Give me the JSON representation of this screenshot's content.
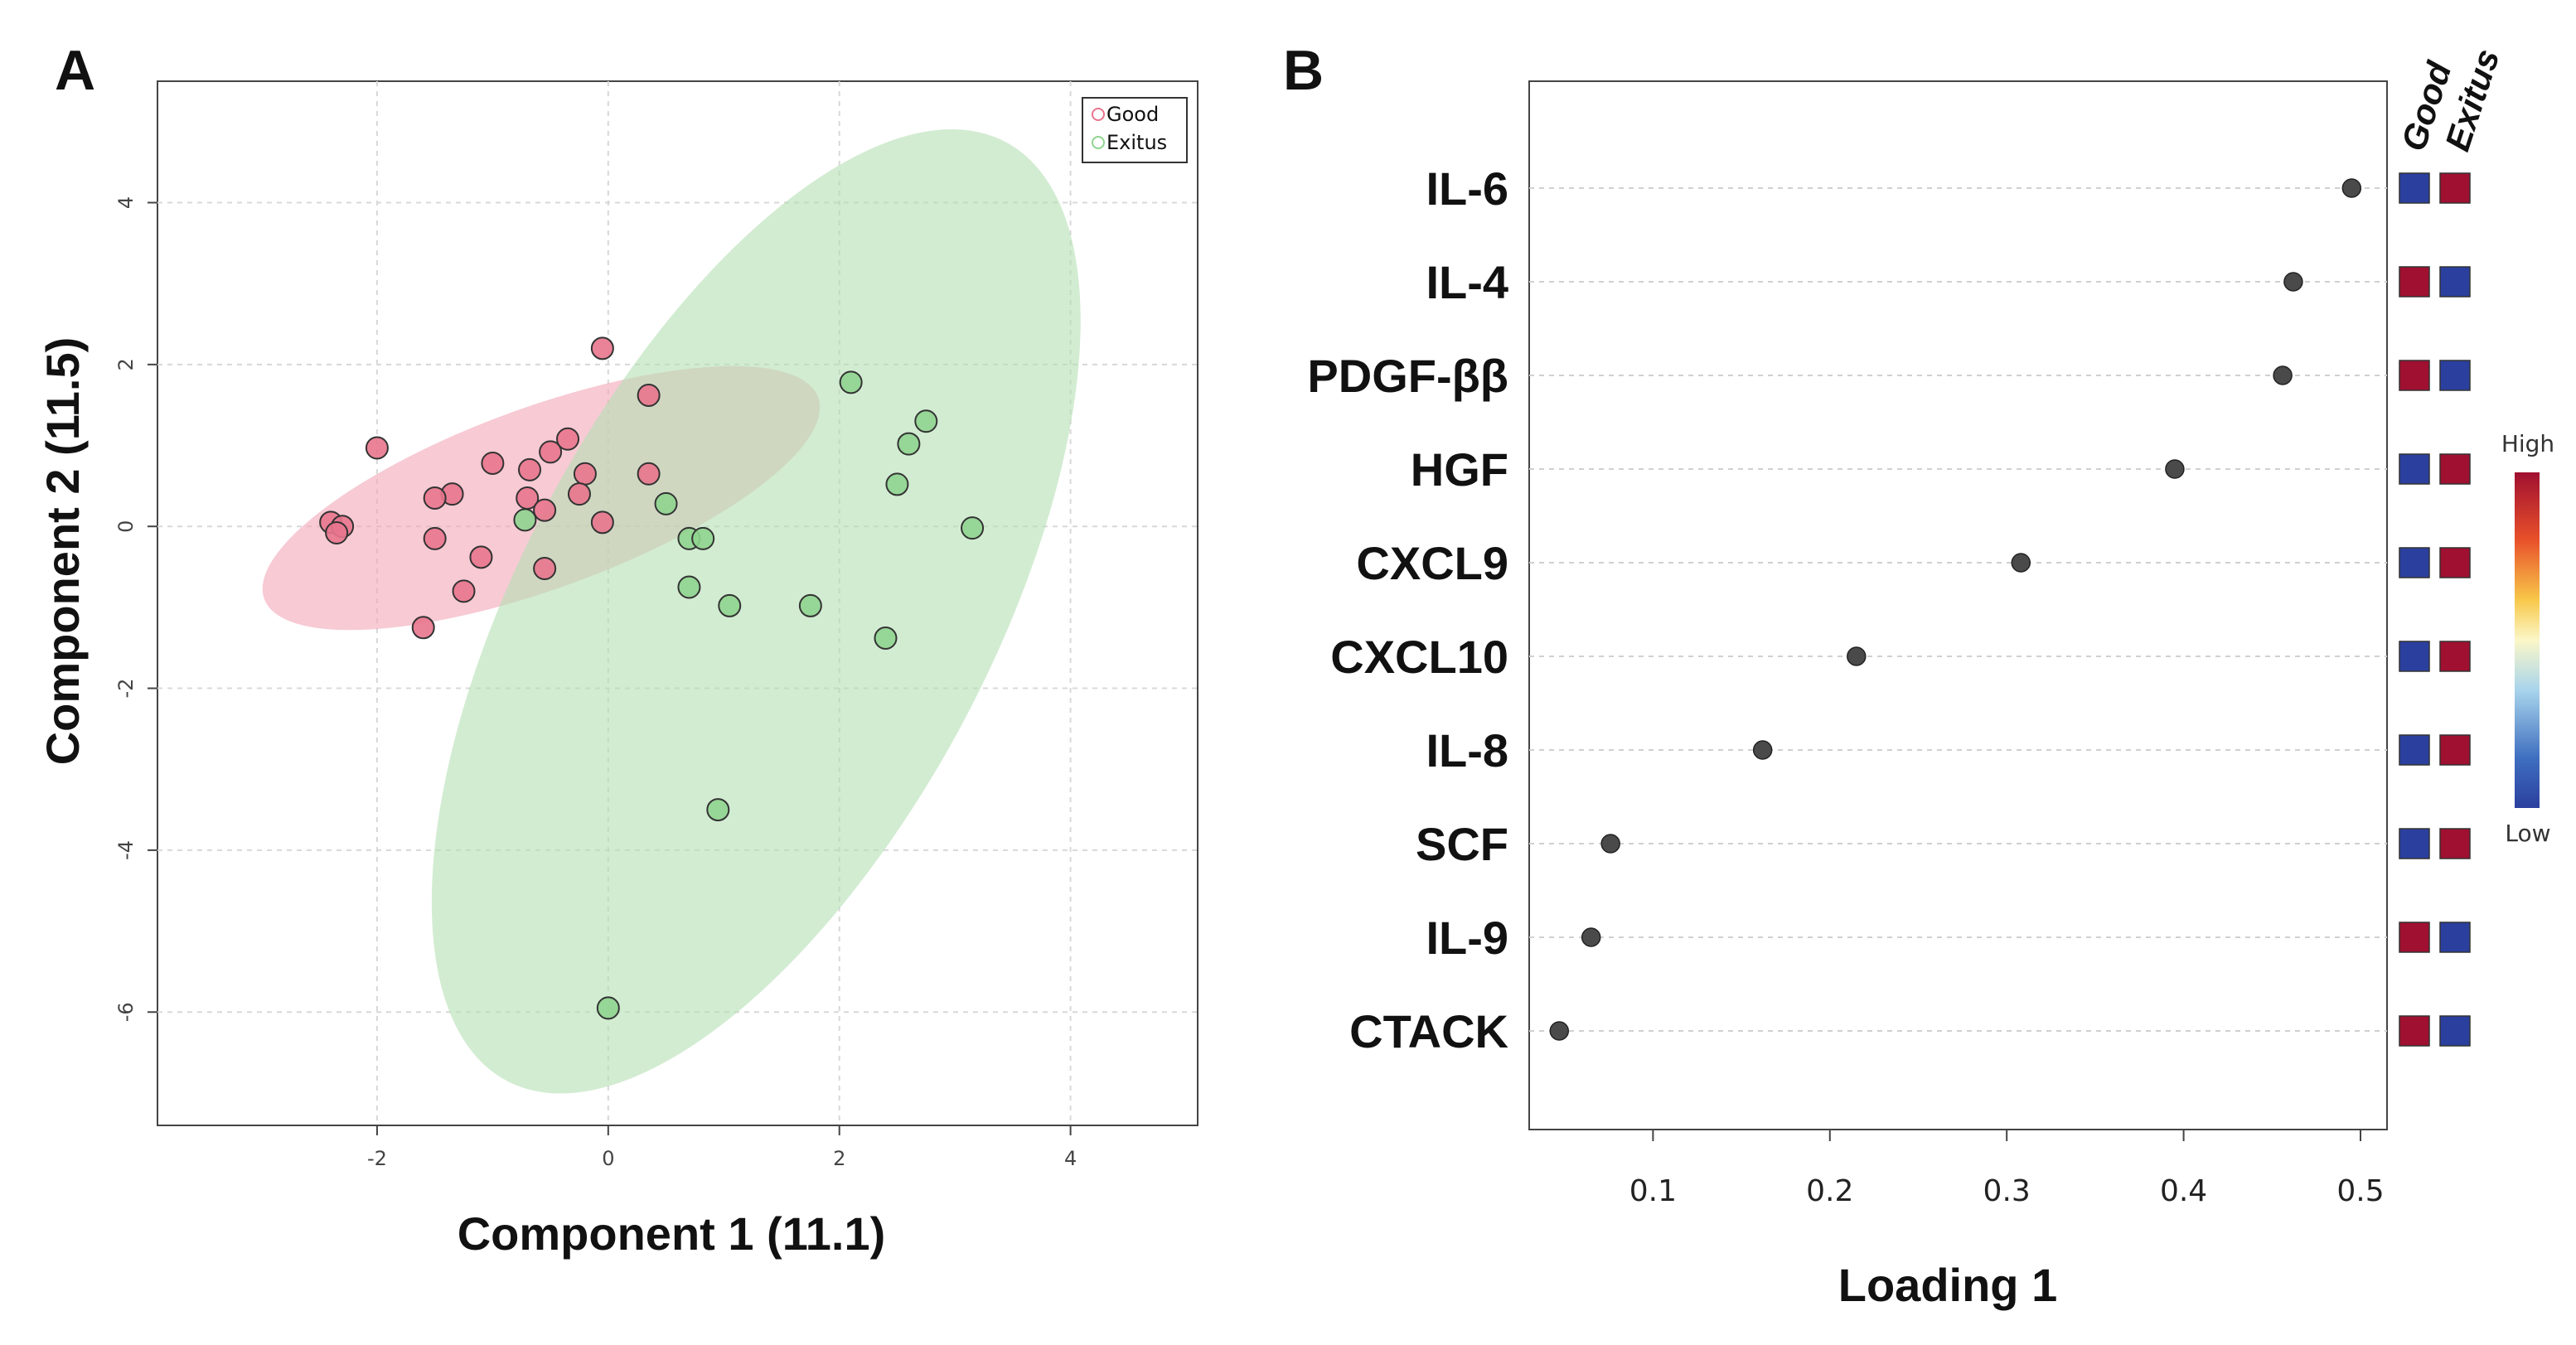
{
  "chart_data": [
    {
      "panel": "A",
      "type": "scatter",
      "xlabel": "Component 1 (11.1)",
      "ylabel": "Component 2 (11.5)",
      "xlim": [
        -3.9,
        5.1
      ],
      "ylim": [
        -7.4,
        5.5
      ],
      "xticks": [
        -2,
        0,
        2,
        4
      ],
      "yticks": [
        4,
        2,
        0,
        -2,
        -4,
        -6
      ],
      "grid": true,
      "legend_position": "top-right",
      "series": [
        {
          "name": "Good",
          "color": "#e8758d",
          "ellipse_color": "#f2a6b8",
          "points": [
            [
              -0.05,
              2.2
            ],
            [
              0.35,
              1.62
            ],
            [
              -2.0,
              0.97
            ],
            [
              -1.0,
              0.78
            ],
            [
              -0.35,
              1.08
            ],
            [
              -0.5,
              0.92
            ],
            [
              -1.35,
              0.4
            ],
            [
              -1.5,
              0.35
            ],
            [
              -0.68,
              0.7
            ],
            [
              -0.7,
              0.35
            ],
            [
              -0.2,
              0.65
            ],
            [
              0.35,
              0.65
            ],
            [
              -0.25,
              0.4
            ],
            [
              -0.55,
              0.2
            ],
            [
              -0.05,
              0.05
            ],
            [
              -2.4,
              0.05
            ],
            [
              -2.3,
              0.0
            ],
            [
              -2.35,
              -0.08
            ],
            [
              -1.5,
              -0.15
            ],
            [
              -1.1,
              -0.38
            ],
            [
              -0.55,
              -0.52
            ],
            [
              -1.25,
              -0.8
            ],
            [
              -1.6,
              -1.25
            ]
          ]
        },
        {
          "name": "Exitus",
          "color": "#8fd48f",
          "ellipse_color": "#b4dfb4",
          "points": [
            [
              2.1,
              1.78
            ],
            [
              2.75,
              1.3
            ],
            [
              2.6,
              1.02
            ],
            [
              2.5,
              0.52
            ],
            [
              0.5,
              0.28
            ],
            [
              -0.72,
              0.08
            ],
            [
              3.15,
              -0.02
            ],
            [
              0.7,
              -0.15
            ],
            [
              0.82,
              -0.15
            ],
            [
              0.7,
              -0.75
            ],
            [
              1.05,
              -0.98
            ],
            [
              1.75,
              -0.98
            ],
            [
              2.4,
              -1.38
            ],
            [
              0.95,
              -3.5
            ],
            [
              0.0,
              -5.95
            ]
          ]
        }
      ],
      "ellipses": [
        {
          "series": "Good",
          "cx": -0.58,
          "cy": 0.35,
          "rx": 2.55,
          "ry": 1.12,
          "angle_deg": 20
        },
        {
          "series": "Exitus",
          "cx": 1.28,
          "cy": -1.05,
          "rx": 4.6,
          "ry": 2.9,
          "angle_deg": 62
        }
      ]
    },
    {
      "panel": "B",
      "type": "scatter",
      "xlabel": "Loading 1",
      "ylabel": "",
      "xlim": [
        0.03,
        0.515
      ],
      "xticks": [
        0.1,
        0.2,
        0.3,
        0.4,
        0.5
      ],
      "xtick_labels": [
        "0.1",
        "0.2",
        "0.3",
        "0.4",
        "0.5"
      ],
      "grid": true,
      "categories": [
        "IL-6",
        "IL-4",
        "PDGF-ββ",
        "HGF",
        "CXCL9",
        "CXCL10",
        "IL-8",
        "SCF",
        "IL-9",
        "CTACK"
      ],
      "values": [
        0.495,
        0.462,
        0.456,
        0.395,
        0.308,
        0.215,
        0.162,
        0.076,
        0.065,
        0.047
      ],
      "class_headers": [
        "Good",
        "Exitus"
      ],
      "class_levels": [
        [
          "low",
          "high"
        ],
        [
          "high",
          "low"
        ],
        [
          "high",
          "low"
        ],
        [
          "low",
          "high"
        ],
        [
          "low",
          "high"
        ],
        [
          "low",
          "high"
        ],
        [
          "low",
          "high"
        ],
        [
          "low",
          "high"
        ],
        [
          "high",
          "low"
        ],
        [
          "high",
          "low"
        ]
      ],
      "color_scale": {
        "high_label": "High",
        "low_label": "Low",
        "high_color": "#a01030",
        "low_color": "#2b3f9e"
      }
    }
  ]
}
